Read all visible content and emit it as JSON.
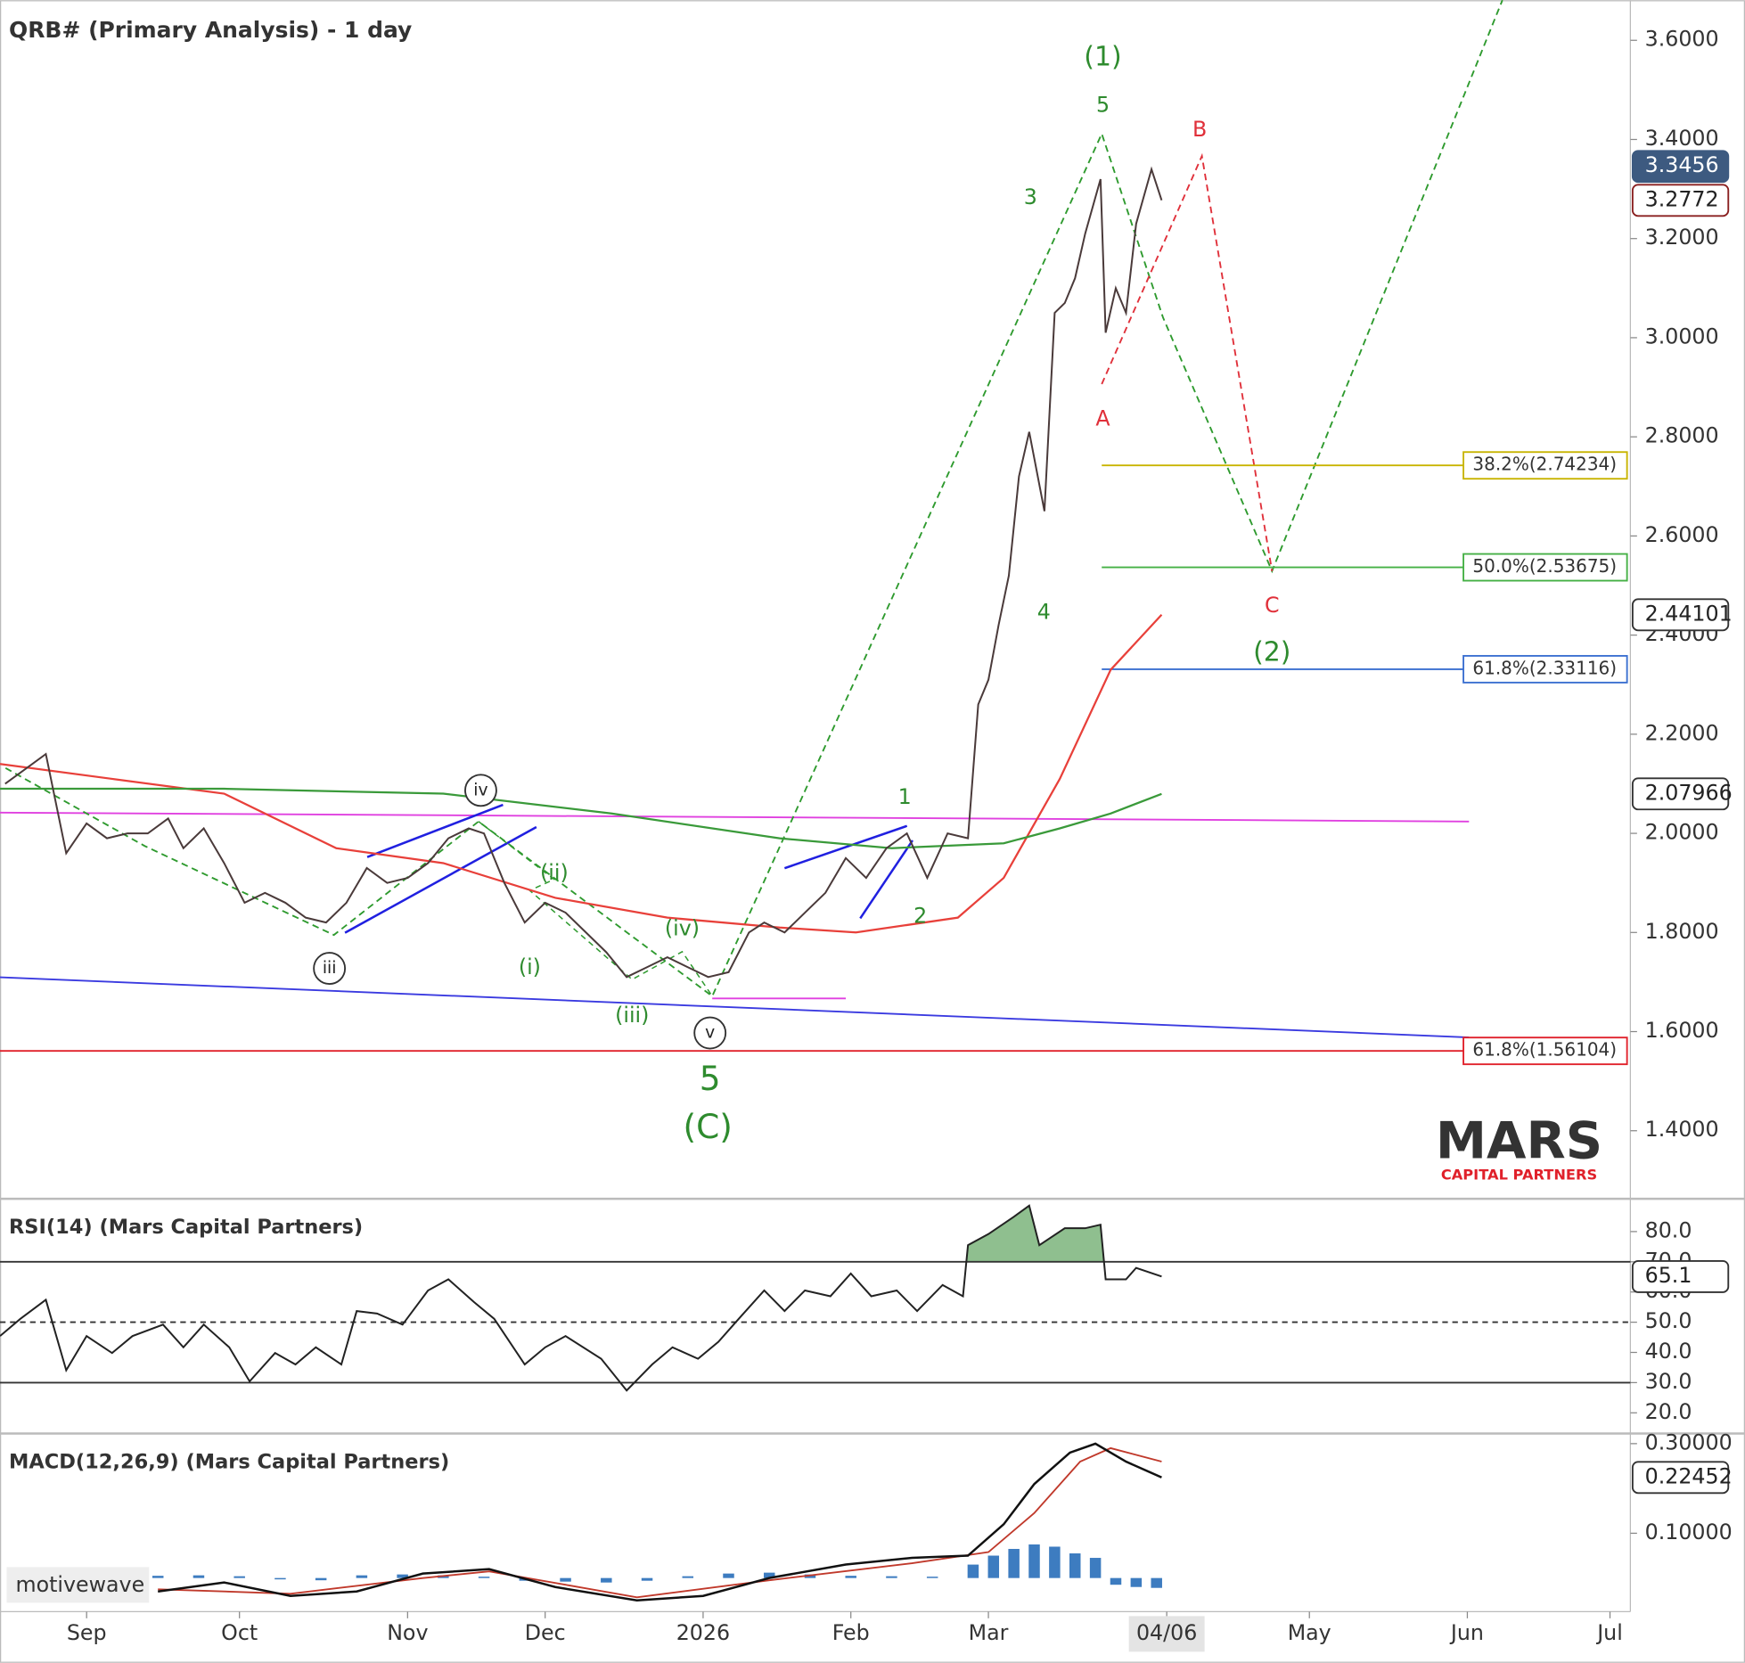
{
  "chart_data": [
    {
      "type": "line",
      "title": "QRB# (Primary Analysis) - 1 day",
      "color": "#4a3a3a",
      "x": [
        1,
        5,
        9,
        13,
        17,
        21,
        25,
        29,
        33,
        36,
        40,
        44,
        48,
        52,
        56,
        60,
        64,
        68,
        72,
        76,
        80,
        84,
        88,
        92,
        95,
        99,
        103,
        107,
        111,
        115,
        119,
        123,
        127,
        131,
        135,
        139,
        143,
        147,
        150,
        154,
        158,
        162,
        166,
        170,
        174,
        178,
        182,
        186,
        190,
        192,
        194,
        196,
        198,
        200,
        202,
        205,
        207,
        209,
        211,
        213,
        216,
        217,
        219,
        221,
        223,
        226,
        228
      ],
      "values": [
        2.1,
        2.13,
        2.16,
        1.96,
        2.02,
        1.99,
        2.0,
        2.0,
        2.03,
        1.97,
        2.01,
        1.94,
        1.86,
        1.88,
        1.86,
        1.83,
        1.82,
        1.86,
        1.93,
        1.9,
        1.91,
        1.94,
        1.99,
        2.01,
        2.0,
        1.9,
        1.82,
        1.86,
        1.84,
        1.8,
        1.76,
        1.71,
        1.73,
        1.75,
        1.73,
        1.71,
        1.72,
        1.8,
        1.82,
        1.8,
        1.84,
        1.88,
        1.95,
        1.91,
        1.97,
        2.0,
        1.91,
        2.0,
        1.99,
        2.26,
        2.31,
        2.42,
        2.52,
        2.72,
        2.81,
        2.65,
        3.05,
        3.07,
        3.12,
        3.21,
        3.32,
        3.01,
        3.1,
        3.05,
        3.23,
        3.34,
        3.2772
      ],
      "overlays": [
        {
          "color": "#e8403a",
          "x": [
            0,
            22,
            44,
            66,
            87,
            109,
            131,
            153,
            168,
            188,
            197,
            208,
            218,
            228
          ],
          "values": [
            2.14,
            2.11,
            2.08,
            1.97,
            1.94,
            1.87,
            1.83,
            1.81,
            1.8,
            1.83,
            1.91,
            2.11,
            2.33,
            2.44101
          ]
        },
        {
          "color": "#3a9a3a",
          "x": [
            0,
            44,
            87,
            120,
            153,
            175,
            197,
            208,
            218,
            228
          ],
          "values": [
            2.09,
            2.09,
            2.08,
            2.04,
            1.99,
            1.97,
            1.98,
            2.01,
            2.04,
            2.07966
          ]
        }
      ],
      "xlim": [
        0,
        320
      ],
      "ylim": [
        1.265,
        3.681
      ],
      "yticks": [
        {
          "value": 1.4,
          "label": "1.4000"
        },
        {
          "value": 1.6,
          "label": "1.6000"
        },
        {
          "value": 1.8,
          "label": "1.8000"
        },
        {
          "value": 2.0,
          "label": "2.0000"
        },
        {
          "value": 2.2,
          "label": "2.2000"
        },
        {
          "value": 2.4,
          "label": "2.4000"
        },
        {
          "value": 2.6,
          "label": "2.6000"
        },
        {
          "value": 2.8,
          "label": "2.8000"
        },
        {
          "value": 3.0,
          "label": "3.0000"
        },
        {
          "value": 3.2,
          "label": "3.2000"
        },
        {
          "value": 3.4,
          "label": "3.4000"
        },
        {
          "value": 3.6,
          "label": "3.6000"
        }
      ],
      "price_markers": [
        {
          "value": 3.3456,
          "color": "#3d5a80"
        }
      ],
      "fib_levels": [
        {
          "value": 2.74234,
          "label": "38.2%(2.74234)",
          "color": "#c8b400"
        },
        {
          "value": 2.53675,
          "label": "50.0%(2.53675)",
          "color": "#45b045"
        },
        {
          "value": 2.33116,
          "label": "61.8%(2.33116)",
          "color": "#3a6fd0"
        },
        {
          "value": 1.56104,
          "label": "61.8%(1.56104)",
          "color": "#e0202a",
          "full_width": true
        }
      ],
      "annotations": [
        {
          "text": "(1)",
          "color": "#2e8b2e",
          "big": true
        },
        {
          "text": "5",
          "color": "#2e8b2e"
        },
        {
          "text": "3",
          "color": "#2e8b2e"
        },
        {
          "text": "4",
          "color": "#2e8b2e"
        },
        {
          "text": "A",
          "color": "#e0303a"
        },
        {
          "text": "B",
          "color": "#e0303a"
        },
        {
          "text": "C",
          "color": "#e0303a"
        },
        {
          "text": "(2)",
          "color": "#2e8b2e",
          "big": true
        },
        {
          "text": "1",
          "color": "#2e8b2e"
        },
        {
          "text": "2",
          "color": "#2e8b2e"
        },
        {
          "text": "iv",
          "color": "#222",
          "circled": true
        },
        {
          "text": "iii",
          "color": "#222",
          "circled": true
        },
        {
          "text": "v",
          "color": "#222",
          "circled": true
        },
        {
          "text": "(ii)",
          "color": "#2e8b2e"
        },
        {
          "text": "(i)",
          "color": "#2e8b2e"
        },
        {
          "text": "(iv)",
          "color": "#2e8b2e"
        },
        {
          "text": "(iii)",
          "color": "#2e8b2e"
        },
        {
          "text": "5",
          "color": "#2e8b2e",
          "huge": true
        },
        {
          "text": "(C)",
          "color": "#2e8b2e",
          "huge": true
        }
      ]
    },
    {
      "type": "line",
      "title": "RSI(14) (Mars Capital Partners)",
      "color": "#222",
      "fill_color": "#8fbf8f",
      "x": [
        0,
        4,
        9,
        13,
        17,
        22,
        26,
        32,
        36,
        40,
        45,
        49,
        54,
        58,
        62,
        67,
        70,
        74,
        79,
        84,
        88,
        93,
        97,
        103,
        107,
        111,
        118,
        123,
        128,
        132,
        137,
        141,
        145,
        150,
        154,
        158,
        163,
        167,
        171,
        176,
        180,
        185,
        189,
        190,
        194,
        199,
        202,
        204,
        209,
        213,
        216,
        217,
        221,
        223,
        228
      ],
      "values": [
        45.4,
        51.1,
        57.4,
        34.1,
        45.4,
        39.8,
        45.4,
        49.2,
        41.7,
        49.2,
        41.7,
        30.4,
        39.8,
        36,
        41.7,
        36,
        53.7,
        52.9,
        49.2,
        60.5,
        64.2,
        56.7,
        51.1,
        36,
        41.7,
        45.4,
        37.9,
        27.4,
        36,
        41.7,
        37.9,
        43.5,
        51.1,
        60.5,
        53.7,
        60.5,
        58.6,
        66.1,
        58.6,
        60.5,
        53.7,
        62.3,
        58.6,
        75.5,
        79.2,
        84.9,
        88.6,
        75.5,
        81.1,
        81.1,
        82.3,
        64.2,
        64.2,
        68,
        65.1
      ],
      "xlim": [
        0,
        320
      ],
      "ylim": [
        13.5,
        90.5
      ],
      "yticks": [
        {
          "value": 20,
          "label": "20.0"
        },
        {
          "value": 30,
          "label": "30.0"
        },
        {
          "value": 40,
          "label": "40.0"
        },
        {
          "value": 50,
          "label": "50.0"
        },
        {
          "value": 60,
          "label": "60.0"
        },
        {
          "value": 70,
          "label": "70.0"
        },
        {
          "value": 80,
          "label": "80.0"
        }
      ],
      "levels": [
        70,
        50,
        30
      ],
      "level_styles": [
        "solid",
        "dashed",
        "solid"
      ]
    },
    {
      "type": "macd",
      "title": "MACD(12,26,9) (Mars Capital Partners)",
      "color": "#111",
      "x": [
        31,
        44,
        57,
        70,
        83,
        96,
        109,
        125,
        138,
        151,
        166,
        179,
        190,
        197,
        203,
        210,
        215,
        221,
        228
      ],
      "values": [
        -0.03,
        -0.01,
        -0.04,
        -0.03,
        0.01,
        0.02,
        -0.02,
        -0.05,
        -0.04,
        0,
        0.03,
        0.045,
        0.05,
        0.12,
        0.21,
        0.28,
        0.3,
        0.26,
        0.22452
      ],
      "signal": {
        "color": "#c0392b",
        "x": [
          31,
          57,
          83,
          96,
          125,
          151,
          179,
          194,
          203,
          212,
          218,
          228
        ],
        "values": [
          -0.025,
          -0.035,
          0,
          0.015,
          -0.043,
          -0.005,
          0.033,
          0.058,
          0.145,
          0.26,
          0.29,
          0.26
        ]
      },
      "histogram": {
        "color": "#3d7cc0",
        "x": [
          31,
          39,
          47,
          55,
          63,
          71,
          79,
          87,
          95,
          103,
          111,
          119,
          127,
          135,
          143,
          151,
          159,
          167,
          175,
          183,
          191,
          195,
          199,
          203,
          207,
          211,
          215,
          219,
          223,
          227
        ],
        "values": [
          0.005,
          0.006,
          0.004,
          -0.003,
          -0.005,
          0.006,
          0.008,
          0.006,
          0.003,
          -0.006,
          -0.008,
          -0.01,
          -0.006,
          0.004,
          0.01,
          0.012,
          0.008,
          0.005,
          0.004,
          0.003,
          0.03,
          0.05,
          0.065,
          0.075,
          0.07,
          0.055,
          0.045,
          -0.015,
          -0.02,
          -0.022
        ]
      },
      "xlim": [
        0,
        320
      ],
      "ylim": [
        -0.075,
        0.32
      ],
      "yticks": [
        {
          "value": 0.1,
          "label": "0.10000"
        },
        {
          "value": 0.3,
          "label": "0.30000"
        }
      ],
      "xticks": [
        {
          "value": 17,
          "label": "Sep"
        },
        {
          "value": 47,
          "label": "Oct"
        },
        {
          "value": 80,
          "label": "Nov"
        },
        {
          "value": 107,
          "label": "Dec"
        },
        {
          "value": 138,
          "label": "2026"
        },
        {
          "value": 167,
          "label": "Feb"
        },
        {
          "value": 194,
          "label": "Mar"
        },
        {
          "value": 229,
          "label": "04/06"
        },
        {
          "value": 257,
          "label": "May"
        },
        {
          "value": 288,
          "label": "Jun"
        },
        {
          "value": 316,
          "label": "Jul"
        }
      ]
    }
  ],
  "watermark": "motivewave",
  "logo": {
    "name": "MARS",
    "tagline": "CAPITAL PARTNERS"
  }
}
